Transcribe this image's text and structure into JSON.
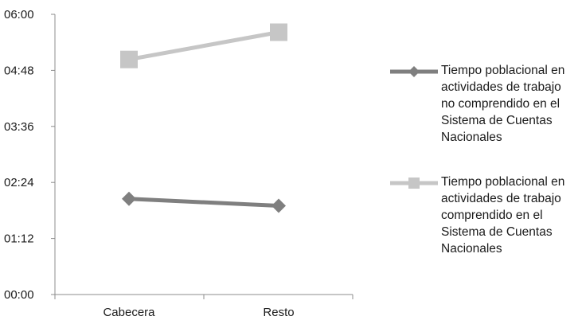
{
  "chart_data": {
    "type": "line",
    "categories": [
      "Cabecera",
      "Resto"
    ],
    "y_tick_labels": [
      "00:00",
      "01:12",
      "02:24",
      "03:36",
      "04:48",
      "06:00"
    ],
    "y_ticks_minutes": [
      0,
      72,
      144,
      216,
      288,
      360
    ],
    "ylim_minutes": [
      0,
      360
    ],
    "y_format": "hh:mm",
    "grid": false,
    "legend_position": "right",
    "series": [
      {
        "name": "Tiempo poblacional en actividades de trabajo no comprendido en el Sistema de Cuentas Nacionales",
        "values_minutes": [
          123,
          114
        ],
        "marker": "diamond",
        "color": "#7f7f7f"
      },
      {
        "name": "Tiempo poblacional en actividades de trabajo comprendido en el Sistema de Cuentas Nacionales",
        "values_minutes": [
          302,
          337
        ],
        "marker": "square",
        "color": "#c6c6c6"
      }
    ]
  }
}
